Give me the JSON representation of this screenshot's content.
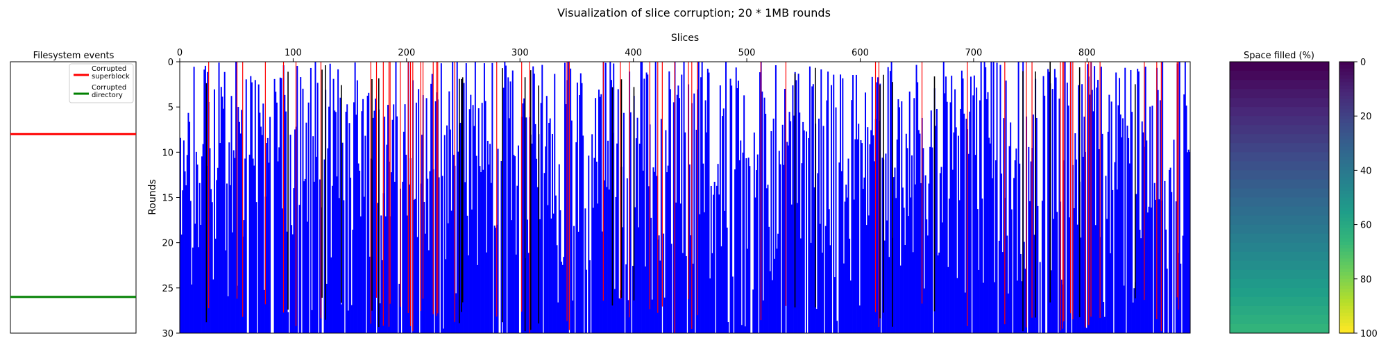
{
  "figure": {
    "title": "Visualization of slice corruption; 20 * 1MB rounds"
  },
  "colors": {
    "background": "#ffffff",
    "corrupted_superblock": "#ff0000",
    "corrupted_directory": "#008000",
    "slice_fill": "#0000ff",
    "red_marker": "#ff0000",
    "black_marker": "#000000",
    "viridis_top": "#440154",
    "viridis_bottom": "#fde725"
  },
  "chart_data": [
    {
      "id": "filesystem-events",
      "type": "line",
      "title": "Filesystem events",
      "ylim": [
        0,
        30
      ],
      "y_inverted": true,
      "xticks": [],
      "yticks": [],
      "grid": false,
      "legend": {
        "placement": "top-right",
        "entries": [
          {
            "label_lines": [
              "Corrupted",
              "superblock"
            ],
            "color": "#ff0000"
          },
          {
            "label_lines": [
              "Corrupted",
              "directory"
            ],
            "color": "#008000"
          }
        ]
      },
      "series": [
        {
          "name": "Corrupted superblock",
          "color": "#ff0000",
          "y": 8
        },
        {
          "name": "Corrupted directory",
          "color": "#008000",
          "y": 26
        }
      ]
    },
    {
      "id": "slice-corruption",
      "type": "heatmap",
      "xlabel": "Slices",
      "ylabel": "Rounds",
      "xlim": [
        0,
        891
      ],
      "ylim": [
        0,
        30
      ],
      "y_inverted": true,
      "xticks": [
        0,
        100,
        200,
        300,
        400,
        500,
        600,
        700,
        800
      ],
      "yticks": [
        0,
        5,
        10,
        15,
        20,
        25,
        30
      ],
      "grid": false,
      "num_slices": 891,
      "seed": 1337
    },
    {
      "id": "space-filled",
      "type": "heatmap",
      "title": "Space filled (%)",
      "fill_range_pct": [
        0,
        65
      ],
      "colorbar": {
        "ticks": [
          0,
          20,
          40,
          60,
          80,
          100
        ],
        "range": [
          0,
          100
        ],
        "colormap": "viridis",
        "inverted": true
      }
    }
  ]
}
